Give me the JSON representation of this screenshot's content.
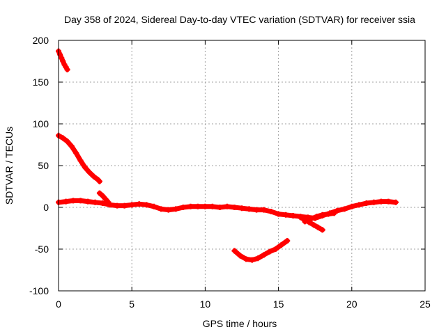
{
  "chart_data": {
    "type": "scatter",
    "title": "Day 358 of 2024, Sidereal Day-to-day VTEC variation (SDTVAR) for receiver ssia",
    "xlabel": "GPS time / hours",
    "ylabel": "SDTVAR / TECUs",
    "xlim": [
      0,
      25
    ],
    "ylim": [
      -100,
      200
    ],
    "xticks": [
      0,
      5,
      10,
      15,
      20,
      25
    ],
    "yticks": [
      -100,
      -50,
      0,
      50,
      100,
      150,
      200
    ],
    "grid": true,
    "color": "#ff0000",
    "marker": "plus",
    "series": [
      {
        "x": [
          0.0,
          0.1,
          0.2,
          0.3,
          0.4,
          0.5,
          0.6
        ],
        "y": [
          187,
          183,
          179,
          175,
          171,
          168,
          165
        ]
      },
      {
        "x": [
          0.0,
          0.3,
          0.6,
          0.9,
          1.2,
          1.5,
          1.8,
          2.1,
          2.4,
          2.7,
          2.8
        ],
        "y": [
          86,
          83,
          79,
          73,
          65,
          56,
          48,
          42,
          37,
          33,
          31
        ]
      },
      {
        "x": [
          0.0,
          0.5,
          1.0,
          1.5,
          2.0,
          2.5,
          3.0,
          3.5,
          4.0,
          4.5,
          5.0,
          5.5,
          6.0,
          6.5,
          7.0,
          7.5,
          8.0,
          8.5,
          9.0,
          9.5,
          10.0,
          10.5,
          11.0,
          11.5,
          12.0,
          12.5,
          13.0,
          13.5,
          14.0,
          14.5,
          15.0,
          15.5,
          16.0,
          16.5,
          17.0,
          17.5,
          18.0,
          18.5,
          19.0,
          19.5,
          20.0,
          20.5,
          21.0,
          21.5,
          22.0,
          22.5,
          23.0
        ],
        "y": [
          6,
          7,
          8,
          8,
          7,
          6,
          5,
          3,
          2,
          2,
          3,
          4,
          3,
          1,
          -2,
          -3,
          -2,
          0,
          1,
          1,
          1,
          1,
          0,
          1,
          0,
          -1,
          -2,
          -3,
          -3,
          -5,
          -8,
          -9,
          -10,
          -11,
          -12,
          -13,
          -10,
          -7,
          -4,
          -2,
          1,
          3,
          5,
          6,
          7,
          7,
          6
        ]
      },
      {
        "x": [
          2.8,
          3.0,
          3.2,
          3.4
        ],
        "y": [
          17,
          14,
          10,
          6
        ]
      },
      {
        "x": [
          16.5,
          16.8,
          17.1,
          17.4,
          17.7,
          18.0
        ],
        "y": [
          -12,
          -15,
          -18,
          -21,
          -24,
          -27
        ]
      },
      {
        "x": [
          16.8,
          17.2,
          17.6,
          18.0,
          18.4,
          18.8
        ],
        "y": [
          -17,
          -14,
          -11,
          -9,
          -8,
          -7
        ]
      },
      {
        "x": [
          12.0,
          12.4,
          12.8,
          13.2,
          13.6,
          14.0,
          14.4,
          14.8,
          15.2,
          15.6
        ],
        "y": [
          -52,
          -58,
          -62,
          -63,
          -61,
          -57,
          -53,
          -50,
          -45,
          -40
        ]
      }
    ]
  }
}
